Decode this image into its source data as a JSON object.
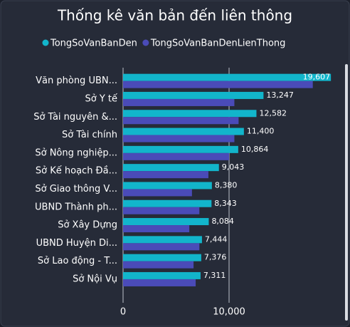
{
  "chart_data": {
    "type": "hbar",
    "title": "Thống kê văn bản đến liên thông",
    "categories": [
      "Văn phòng UBN...",
      "Sở Y tế",
      "Sở Tài nguyên &...",
      "Sở Tài chính",
      "Sở Nông nghiệp...",
      "Sở Kế hoạch Đầ...",
      "Sở Giao thông V...",
      "UBND Thành ph...",
      "Sở Xây Dựng",
      "UBND Huyện Di...",
      "Sở Lao động - T...",
      "Sở Nội Vụ"
    ],
    "series": [
      {
        "name": "TongSoVanBanDen",
        "color": "#12b5cb",
        "values": [
          19607,
          13247,
          12582,
          11400,
          10864,
          9043,
          8380,
          8343,
          8084,
          7444,
          7376,
          7311
        ],
        "value_labels": [
          "19,607",
          "13,247",
          "12,582",
          "11,400",
          "10,864",
          "9,043",
          "8,380",
          "8,343",
          "8,084",
          "7,444",
          "7,376",
          "7,311"
        ]
      },
      {
        "name": "TongSoVanBanDenLienThong",
        "color": "#4a4bb8",
        "values": [
          17900,
          10500,
          10900,
          10500,
          10000,
          8050,
          6500,
          7200,
          6250,
          7200,
          6650,
          6850
        ]
      }
    ],
    "xlim": [
      0,
      20000
    ],
    "xticks": [
      0,
      {
        "value": 10000,
        "label": "10,000"
      }
    ],
    "grid": true
  }
}
